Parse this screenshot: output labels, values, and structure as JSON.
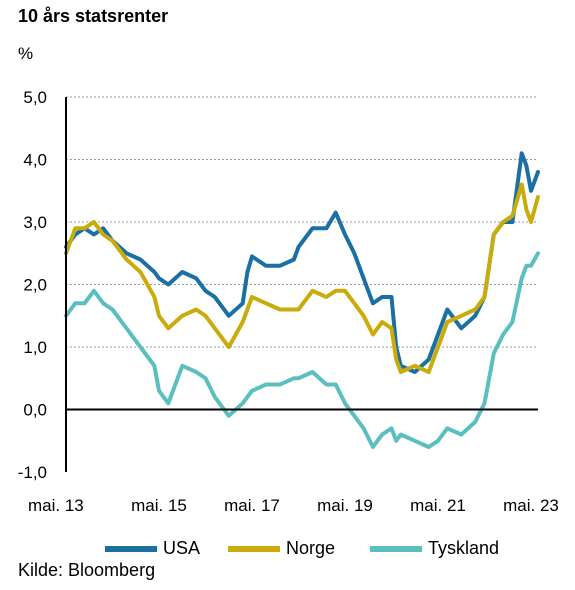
{
  "header": {
    "title": "10 års statsrenter",
    "unit": "%"
  },
  "source": "Kilde: Bloomberg",
  "colors": {
    "usa": "#1a6fa3",
    "norge": "#c9ac0c",
    "tyskland": "#5bbfc0"
  },
  "chart_data": {
    "type": "line",
    "title": "10 års statsrenter",
    "ylabel": "%",
    "xlabel": "",
    "ylim": [
      -1.0,
      5.0
    ],
    "xlim": [
      2013.0,
      2023.15
    ],
    "y_ticks": [
      "5,0",
      "4,0",
      "3,0",
      "2,0",
      "1,0",
      "0,0",
      "-1,0"
    ],
    "y_tick_values": [
      5,
      4,
      3,
      2,
      1,
      0,
      -1
    ],
    "x_ticks": [
      "mai. 13",
      "mai. 15",
      "mai. 17",
      "mai. 19",
      "mai. 21",
      "mai. 23"
    ],
    "x_tick_values": [
      2013.0,
      2015.0,
      2017.0,
      2019.0,
      2021.0,
      2023.0
    ],
    "grid": "horizontal dotted",
    "legend_position": "bottom",
    "series": [
      {
        "name": "USA",
        "x": [
          2013.0,
          2013.2,
          2013.4,
          2013.6,
          2013.8,
          2014.0,
          2014.3,
          2014.6,
          2014.9,
          2015.0,
          2015.2,
          2015.5,
          2015.8,
          2016.0,
          2016.2,
          2016.5,
          2016.8,
          2016.9,
          2017.0,
          2017.3,
          2017.6,
          2017.9,
          2018.0,
          2018.3,
          2018.6,
          2018.8,
          2019.0,
          2019.2,
          2019.4,
          2019.6,
          2019.8,
          2020.0,
          2020.1,
          2020.2,
          2020.5,
          2020.8,
          2021.0,
          2021.2,
          2021.5,
          2021.8,
          2022.0,
          2022.2,
          2022.4,
          2022.6,
          2022.8,
          2022.9,
          2023.0,
          2023.15
        ],
        "values": [
          2.6,
          2.8,
          2.9,
          2.8,
          2.9,
          2.7,
          2.5,
          2.4,
          2.2,
          2.1,
          2.0,
          2.2,
          2.1,
          1.9,
          1.8,
          1.5,
          1.7,
          2.2,
          2.45,
          2.3,
          2.3,
          2.4,
          2.6,
          2.9,
          2.9,
          3.15,
          2.8,
          2.5,
          2.1,
          1.7,
          1.8,
          1.8,
          1.0,
          0.7,
          0.6,
          0.8,
          1.2,
          1.6,
          1.3,
          1.5,
          1.8,
          2.8,
          3.0,
          3.0,
          4.1,
          3.9,
          3.5,
          3.8
        ]
      },
      {
        "name": "Norge",
        "x": [
          2013.0,
          2013.2,
          2013.4,
          2013.6,
          2013.8,
          2014.0,
          2014.3,
          2014.6,
          2014.9,
          2015.0,
          2015.2,
          2015.5,
          2015.8,
          2016.0,
          2016.2,
          2016.5,
          2016.8,
          2017.0,
          2017.3,
          2017.6,
          2017.9,
          2018.0,
          2018.3,
          2018.6,
          2018.8,
          2019.0,
          2019.2,
          2019.4,
          2019.6,
          2019.8,
          2020.0,
          2020.1,
          2020.2,
          2020.5,
          2020.8,
          2021.0,
          2021.2,
          2021.5,
          2021.8,
          2022.0,
          2022.2,
          2022.4,
          2022.6,
          2022.8,
          2022.9,
          2023.0,
          2023.15
        ],
        "values": [
          2.5,
          2.9,
          2.9,
          3.0,
          2.8,
          2.7,
          2.4,
          2.2,
          1.8,
          1.5,
          1.3,
          1.5,
          1.6,
          1.5,
          1.3,
          1.0,
          1.4,
          1.8,
          1.7,
          1.6,
          1.6,
          1.6,
          1.9,
          1.8,
          1.9,
          1.9,
          1.7,
          1.5,
          1.2,
          1.4,
          1.3,
          0.8,
          0.6,
          0.7,
          0.6,
          1.0,
          1.4,
          1.5,
          1.6,
          1.8,
          2.8,
          3.0,
          3.1,
          3.6,
          3.2,
          3.0,
          3.4
        ]
      },
      {
        "name": "Tyskland",
        "x": [
          2013.0,
          2013.2,
          2013.4,
          2013.6,
          2013.8,
          2014.0,
          2014.3,
          2014.6,
          2014.9,
          2015.0,
          2015.2,
          2015.5,
          2015.8,
          2016.0,
          2016.2,
          2016.5,
          2016.8,
          2017.0,
          2017.3,
          2017.6,
          2017.9,
          2018.0,
          2018.3,
          2018.6,
          2018.8,
          2019.0,
          2019.2,
          2019.4,
          2019.6,
          2019.8,
          2020.0,
          2020.1,
          2020.2,
          2020.5,
          2020.8,
          2021.0,
          2021.2,
          2021.5,
          2021.8,
          2022.0,
          2022.2,
          2022.4,
          2022.6,
          2022.8,
          2022.9,
          2023.0,
          2023.15
        ],
        "values": [
          1.5,
          1.7,
          1.7,
          1.9,
          1.7,
          1.6,
          1.3,
          1.0,
          0.7,
          0.3,
          0.1,
          0.7,
          0.6,
          0.5,
          0.2,
          -0.1,
          0.1,
          0.3,
          0.4,
          0.4,
          0.5,
          0.5,
          0.6,
          0.4,
          0.4,
          0.1,
          -0.1,
          -0.3,
          -0.6,
          -0.4,
          -0.3,
          -0.5,
          -0.4,
          -0.5,
          -0.6,
          -0.5,
          -0.3,
          -0.4,
          -0.2,
          0.1,
          0.9,
          1.2,
          1.4,
          2.1,
          2.3,
          2.3,
          2.5
        ]
      }
    ]
  }
}
